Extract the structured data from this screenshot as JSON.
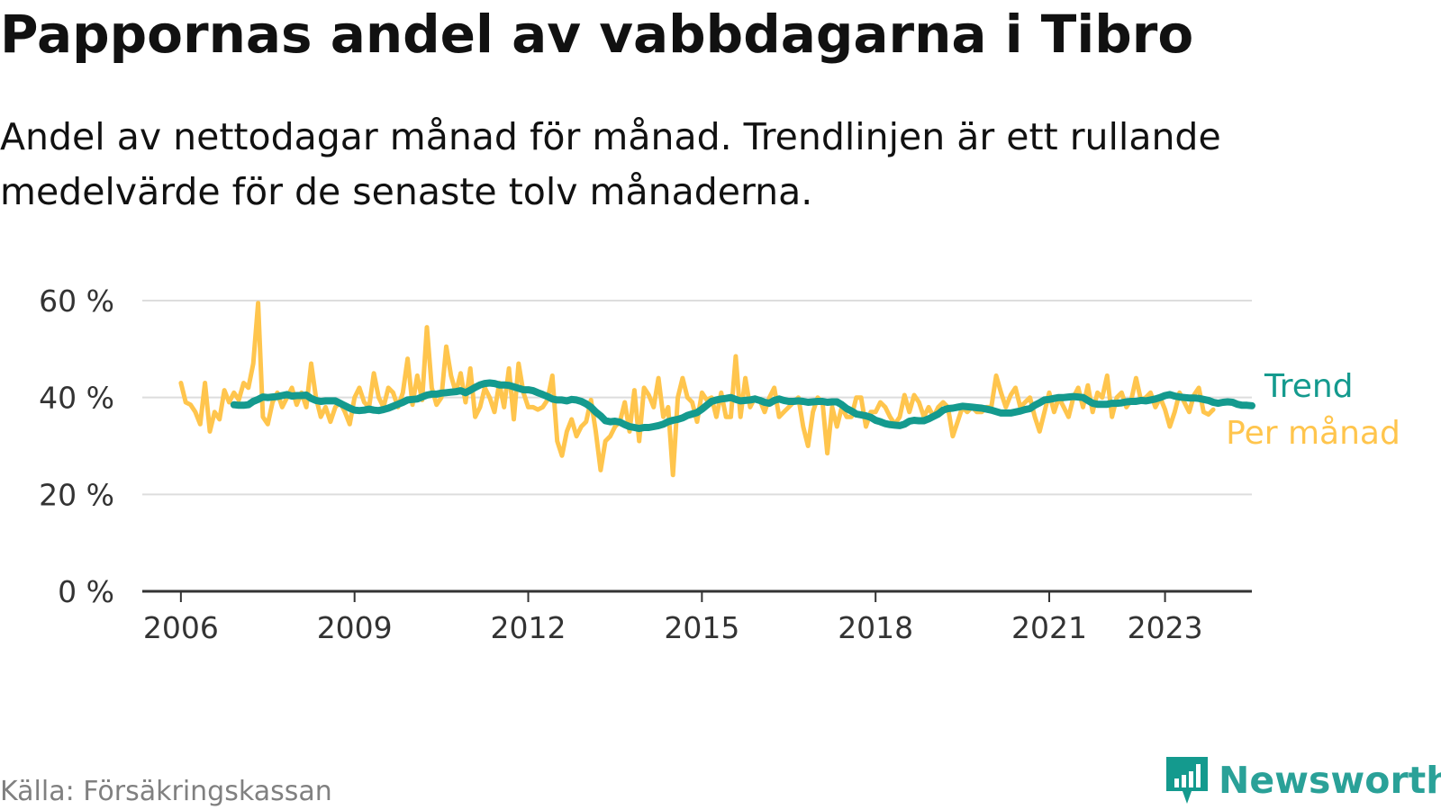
{
  "title": "Pappornas andel av vabbdagarna i Tibro",
  "subtitle": "Andel av nettodagar månad för månad. Trendlinjen är ett rullande medelvärde för de senaste tolv månaderna.",
  "source": "Källa: Försäkringskassan",
  "brand": {
    "name": "Newsworthy",
    "icon": "newsworthy-logo-icon",
    "color": "#149a8e"
  },
  "chart_data": {
    "type": "line",
    "title": "Pappornas andel av vabbdagarna i Tibro",
    "xlabel": "",
    "ylabel": "",
    "ylim": [
      0,
      60
    ],
    "xlim": [
      "2005-05",
      "2024-07"
    ],
    "yticks": [
      0,
      20,
      40,
      60
    ],
    "ytick_labels": [
      "0 %",
      "20 %",
      "40 %",
      "60 %"
    ],
    "xtick_dates": [
      "2006-01",
      "2009-01",
      "2012-01",
      "2015-01",
      "2018-01",
      "2021-01",
      "2023-01"
    ],
    "xtick_labels": [
      "2006",
      "2009",
      "2012",
      "2015",
      "2018",
      "2021",
      "2023"
    ],
    "grid": true,
    "legend": "end-of-line labels",
    "series": [
      {
        "name": "Per månad",
        "color": "#ffc54d",
        "start": "2006-01",
        "values": [
          43,
          39,
          38.5,
          37,
          34.5,
          43,
          33,
          37,
          35.5,
          41.5,
          39,
          41,
          39.5,
          43,
          42,
          47,
          59.5,
          36,
          34.5,
          39,
          41,
          38,
          40,
          42,
          38.5,
          41,
          38,
          47,
          40,
          36,
          38,
          35,
          38,
          39,
          37,
          34.5,
          40,
          42,
          39,
          38,
          45,
          40,
          38,
          42,
          41,
          38,
          41,
          48,
          38.5,
          44.5,
          39.5,
          54.5,
          42,
          38.5,
          40,
          50.5,
          44.5,
          41,
          45,
          39,
          46,
          36,
          38,
          42,
          40,
          37,
          43,
          38,
          46,
          35.5,
          47,
          41,
          38,
          38,
          37.5,
          38,
          39.5,
          44.5,
          31,
          28,
          33,
          35.5,
          32,
          34,
          35,
          39.5,
          33,
          25,
          31,
          32,
          34,
          35,
          39,
          33,
          41.5,
          31,
          42,
          40.5,
          38,
          44,
          36,
          38,
          24,
          40,
          44,
          40,
          39,
          35,
          41,
          39.5,
          40,
          36,
          41,
          36,
          36,
          48.5,
          36,
          44,
          38,
          40,
          39.5,
          37,
          40,
          42,
          36,
          37,
          38,
          39,
          40,
          34,
          30,
          37,
          40,
          39,
          28.5,
          38,
          34,
          38,
          36,
          36,
          40,
          40,
          34,
          37,
          37,
          39,
          38,
          36,
          34.5,
          36,
          40.5,
          37,
          40.5,
          39,
          36,
          38,
          36,
          38,
          39,
          38,
          32,
          35,
          38,
          37,
          38,
          37,
          37,
          38,
          38,
          44.5,
          41,
          38,
          40.5,
          42,
          38,
          39,
          40,
          36,
          33,
          37,
          41,
          37,
          40,
          38,
          36,
          40,
          42,
          38,
          42.5,
          37,
          41,
          40,
          44.5,
          36,
          40,
          41,
          38,
          39.5,
          44,
          39.5,
          40,
          41,
          38,
          40,
          37.5,
          34,
          37,
          41,
          39,
          37,
          40.5,
          42,
          37,
          36.5,
          37.5
        ]
      },
      {
        "name": "Trend",
        "color": "#149a8e",
        "start": "2006-12",
        "values": [
          38.5,
          38.4,
          38.4,
          38.5,
          39.2,
          39.6,
          40.1,
          40.0,
          40.1,
          40.2,
          40.4,
          40.6,
          40.3,
          40.4,
          40.4,
          40.5,
          39.8,
          39.4,
          39.2,
          39.3,
          39.3,
          39.3,
          38.8,
          38.3,
          37.8,
          37.4,
          37.3,
          37.4,
          37.6,
          37.4,
          37.3,
          37.5,
          37.8,
          38.2,
          38.6,
          39.0,
          39.5,
          39.6,
          39.7,
          40.1,
          40.5,
          40.7,
          40.7,
          40.9,
          41.0,
          41.1,
          41.2,
          41.4,
          41.0,
          41.5,
          42.1,
          42.6,
          42.9,
          43.0,
          42.9,
          42.6,
          42.6,
          42.5,
          42.2,
          41.9,
          41.6,
          41.6,
          41.4,
          41.0,
          40.6,
          40.2,
          39.7,
          39.5,
          39.5,
          39.3,
          39.6,
          39.5,
          39.2,
          38.7,
          38.0,
          37.0,
          36.2,
          35.2,
          35.0,
          35.1,
          34.9,
          34.4,
          34.0,
          33.8,
          33.6,
          33.8,
          33.8,
          34.0,
          34.2,
          34.5,
          35.0,
          35.3,
          35.5,
          35.8,
          36.3,
          36.6,
          36.9,
          37.6,
          38.4,
          39.2,
          39.5,
          39.7,
          39.8,
          40.0,
          39.6,
          39.3,
          39.4,
          39.5,
          39.7,
          39.4,
          39.0,
          38.8,
          39.4,
          39.7,
          39.4,
          39.2,
          39.2,
          39.3,
          39.2,
          39.0,
          39.1,
          39.2,
          39.2,
          39.0,
          39.1,
          39.1,
          38.5,
          37.7,
          37.2,
          36.6,
          36.4,
          36.2,
          35.9,
          35.3,
          35.0,
          34.6,
          34.4,
          34.3,
          34.2,
          34.5,
          35.1,
          35.3,
          35.2,
          35.2,
          35.6,
          36.1,
          36.6,
          37.4,
          37.7,
          37.8,
          38.0,
          38.2,
          38.1,
          38.0,
          37.9,
          37.8,
          37.6,
          37.4,
          37.1,
          36.8,
          36.8,
          36.8,
          37.0,
          37.2,
          37.5,
          37.7,
          38.4,
          38.9,
          39.5,
          39.6,
          39.8,
          40.0,
          40.0,
          40.1,
          40.2,
          40.1,
          40.0,
          39.4,
          38.8,
          38.6,
          38.6,
          38.6,
          38.8,
          38.8,
          38.9,
          39.1,
          39.2,
          39.2,
          39.4,
          39.3,
          39.5,
          39.7,
          40.0,
          40.4,
          40.6,
          40.3,
          40.1,
          40.0,
          39.9,
          39.9,
          39.8,
          39.6,
          39.4,
          39.0,
          38.8,
          39.0,
          39.1,
          39.0,
          38.6,
          38.4,
          38.4,
          38.3
        ]
      }
    ]
  }
}
